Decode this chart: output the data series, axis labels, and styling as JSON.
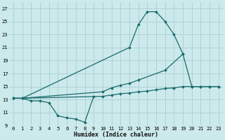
{
  "bg_color": "#cce9eb",
  "grid_color": "#aacfd2",
  "line_color": "#1a6b6b",
  "marker": "D",
  "markersize": 2.0,
  "linewidth": 0.9,
  "xlabel": "Humidex (Indice chaleur)",
  "xlim": [
    -0.5,
    23.5
  ],
  "ylim": [
    9,
    28
  ],
  "yticks": [
    9,
    11,
    13,
    15,
    17,
    19,
    21,
    23,
    25,
    27
  ],
  "xticks": [
    0,
    1,
    2,
    3,
    4,
    5,
    6,
    7,
    8,
    9,
    10,
    11,
    12,
    13,
    14,
    15,
    16,
    17,
    18,
    19,
    20,
    21,
    22,
    23
  ],
  "lines": [
    {
      "x": [
        0,
        1,
        2,
        3,
        4,
        5,
        6,
        7,
        8,
        9
      ],
      "y": [
        13.2,
        13.2,
        12.8,
        12.8,
        12.5,
        10.5,
        10.2,
        10.0,
        9.5,
        13.5
      ]
    },
    {
      "x": [
        0,
        1,
        13,
        14,
        15,
        16,
        17,
        18,
        19
      ],
      "y": [
        13.2,
        13.2,
        21.0,
        24.5,
        26.5,
        26.5,
        25.0,
        23.0,
        20.0
      ]
    },
    {
      "x": [
        0,
        1,
        10,
        11,
        12,
        13,
        14,
        17,
        19,
        20,
        21,
        22,
        23
      ],
      "y": [
        13.2,
        13.2,
        14.2,
        14.8,
        15.2,
        15.5,
        16.0,
        17.5,
        20.0,
        15.0,
        15.0,
        15.0,
        15.0
      ]
    },
    {
      "x": [
        0,
        1,
        10,
        11,
        12,
        13,
        14,
        15,
        16,
        17,
        18,
        19,
        20,
        21,
        22,
        23
      ],
      "y": [
        13.2,
        13.2,
        13.5,
        13.7,
        13.9,
        14.0,
        14.2,
        14.3,
        14.5,
        14.7,
        14.8,
        15.0,
        15.0,
        15.0,
        15.0,
        15.0
      ]
    }
  ]
}
